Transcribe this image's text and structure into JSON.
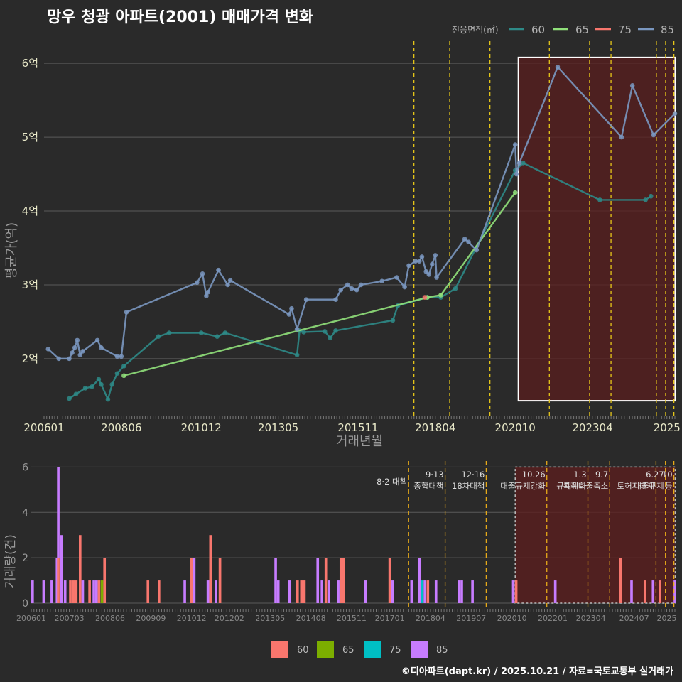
{
  "title": "망우 청광 아파트(2001) 매매가격 변화",
  "credit": "©디아파트(dapt.kr) / 2025.10.21 / 자료=국토교통부 실거래가",
  "colors": {
    "bg": "#2a2a2a",
    "grid": "#5a5a5a",
    "tick": "#e8e8c8",
    "axis_title": "#9a9a9a",
    "highlight_fill": "#5a1e1e",
    "vline": "#e6c619"
  },
  "chart_data": [
    {
      "type": "line",
      "title": "망우 청광 아파트(2001) 매매가격 변화",
      "xlabel": "거래년월",
      "ylabel": "평균가(억)",
      "ylim": [
        1.2,
        6.3
      ],
      "xlim": [
        2006.0,
        2025.75
      ],
      "x_ticks": [
        {
          "v": 2006.0,
          "label": "200601"
        },
        {
          "v": 2008.42,
          "label": "200806"
        },
        {
          "v": 2010.92,
          "label": "201012"
        },
        {
          "v": 2013.33,
          "label": "201305"
        },
        {
          "v": 2015.83,
          "label": "201511"
        },
        {
          "v": 2018.25,
          "label": "201804"
        },
        {
          "v": 2020.75,
          "label": "202010"
        },
        {
          "v": 2023.17,
          "label": "202304"
        },
        {
          "v": 2025.5,
          "label": "2025"
        }
      ],
      "y_ticks": [
        {
          "v": 2,
          "label": "2억"
        },
        {
          "v": 3,
          "label": "3억"
        },
        {
          "v": 4,
          "label": "4억"
        },
        {
          "v": 5,
          "label": "5억"
        },
        {
          "v": 6,
          "label": "6억"
        }
      ],
      "legend_title": "전용면적(㎡)",
      "legend_position": "top-right",
      "policy_lines": [
        2017.58,
        2018.7,
        2019.96,
        2021.82,
        2023.08,
        2023.75,
        2025.17,
        2025.46,
        2025.72
      ],
      "highlight": {
        "x_start": 2020.85,
        "x_end": 2025.76,
        "y_start": 1.43,
        "y_end": 6.08
      },
      "series": [
        {
          "name": "60",
          "color": "#2e8a87",
          "x": [
            2006.79,
            2007.0,
            2007.29,
            2007.5,
            2007.71,
            2007.79,
            2008.0,
            2008.13,
            2008.29,
            2008.5,
            2009.58,
            2009.92,
            2010.92,
            2011.42,
            2011.67,
            2013.92,
            2014.0,
            2014.13,
            2014.79,
            2014.96,
            2015.13,
            2016.92,
            2017.08,
            2018.0,
            2018.42,
            2018.88,
            2020.75,
            2021.0,
            2023.4,
            2024.83,
            2025.0
          ],
          "y": [
            1.46,
            1.52,
            1.6,
            1.62,
            1.72,
            1.65,
            1.45,
            1.65,
            1.8,
            1.9,
            2.3,
            2.35,
            2.35,
            2.3,
            2.35,
            2.05,
            2.38,
            2.36,
            2.37,
            2.28,
            2.38,
            2.52,
            2.72,
            2.83,
            2.83,
            2.95,
            4.55,
            4.65,
            4.15,
            4.15,
            4.2
          ]
        },
        {
          "name": "65",
          "color": "#90e07a",
          "x": [
            2008.5,
            2018.0,
            2018.42,
            2020.75
          ],
          "y": [
            1.77,
            2.83,
            2.86,
            4.25
          ]
        },
        {
          "name": "75",
          "color": "#f8766d",
          "x": [
            2017.92
          ],
          "y": [
            2.83
          ]
        },
        {
          "name": "85",
          "color": "#7a97c0",
          "x": [
            2006.13,
            2006.46,
            2006.79,
            2006.88,
            2006.96,
            2007.04,
            2007.13,
            2007.21,
            2007.67,
            2007.79,
            2008.29,
            2008.42,
            2008.58,
            2010.79,
            2010.96,
            2011.08,
            2011.13,
            2011.46,
            2011.75,
            2011.83,
            2013.67,
            2013.75,
            2013.92,
            2014.21,
            2015.13,
            2015.29,
            2015.5,
            2015.63,
            2015.79,
            2015.92,
            2016.58,
            2017.04,
            2017.29,
            2017.42,
            2017.63,
            2017.75,
            2017.83,
            2017.96,
            2018.05,
            2018.15,
            2018.25,
            2018.29,
            2019.17,
            2019.29,
            2019.54,
            2020.75,
            2020.79,
            2020.88,
            2022.08,
            2024.08,
            2024.42,
            2025.08,
            2025.75
          ],
          "y": [
            2.13,
            2.0,
            2.0,
            2.08,
            2.15,
            2.25,
            2.05,
            2.1,
            2.25,
            2.15,
            2.03,
            2.03,
            2.63,
            3.03,
            3.15,
            2.85,
            2.9,
            3.2,
            3.0,
            3.06,
            2.6,
            2.68,
            2.4,
            2.8,
            2.8,
            2.93,
            3.0,
            2.95,
            2.93,
            3.0,
            3.05,
            3.1,
            2.97,
            3.26,
            3.32,
            3.32,
            3.38,
            3.18,
            3.14,
            3.28,
            3.4,
            3.1,
            3.62,
            3.58,
            3.47,
            4.9,
            4.5,
            4.65,
            5.95,
            5.0,
            5.7,
            5.03,
            5.32
          ]
        }
      ]
    },
    {
      "type": "bar",
      "xlabel": "",
      "ylabel": "거래량(건)",
      "ylim": [
        0,
        6.2
      ],
      "xlim": [
        2006.0,
        2025.75
      ],
      "y_ticks": [
        {
          "v": 0,
          "label": "0"
        },
        {
          "v": 2,
          "label": "2"
        },
        {
          "v": 4,
          "label": "4"
        },
        {
          "v": 6,
          "label": "6"
        }
      ],
      "x_ticks": [
        {
          "v": 2006.0,
          "label": "200601"
        },
        {
          "v": 2007.17,
          "label": "200703"
        },
        {
          "v": 2008.42,
          "label": "200806"
        },
        {
          "v": 2009.67,
          "label": "200909"
        },
        {
          "v": 2010.92,
          "label": "201012"
        },
        {
          "v": 2012.08,
          "label": "201202"
        },
        {
          "v": 2013.33,
          "label": "201305"
        },
        {
          "v": 2014.58,
          "label": "201408"
        },
        {
          "v": 2015.83,
          "label": "201511"
        },
        {
          "v": 2017.0,
          "label": "201701"
        },
        {
          "v": 2018.25,
          "label": "201804"
        },
        {
          "v": 2019.5,
          "label": "201907"
        },
        {
          "v": 2020.75,
          "label": "202010"
        },
        {
          "v": 2022.0,
          "label": "202201"
        },
        {
          "v": 2023.17,
          "label": "202304"
        },
        {
          "v": 2024.5,
          "label": "202407"
        },
        {
          "v": 2025.5,
          "label": "2025"
        }
      ],
      "legend_position": "bottom",
      "legend": [
        {
          "name": "60",
          "color": "#f8766d"
        },
        {
          "name": "65",
          "color": "#7cae00"
        },
        {
          "name": "75",
          "color": "#00bfc4"
        },
        {
          "name": "85",
          "color": "#c77cff"
        }
      ],
      "policy_lines": [
        2017.58,
        2018.7,
        2019.96,
        2021.82,
        2023.08,
        2023.75,
        2025.17,
        2025.46,
        2025.72
      ],
      "policy_annotations": [
        {
          "x": 2017.58,
          "lines": [
            "8·2 대책"
          ]
        },
        {
          "x": 2018.7,
          "lines": [
            "9·13",
            "종합대책"
          ]
        },
        {
          "x": 2019.96,
          "lines": [
            "12·16",
            "18차대책"
          ]
        },
        {
          "x": 2021.82,
          "lines": [
            "10.26",
            "대출규제강화"
          ]
        },
        {
          "x": 2023.08,
          "lines": [
            "1.3",
            "규제완화"
          ]
        },
        {
          "x": 2023.75,
          "lines": [
            "9.7",
            "특례대출축소"
          ]
        },
        {
          "x": 2025.17,
          "lines": [
            "",
            "토허제해제"
          ]
        },
        {
          "x": 2025.46,
          "lines": [
            "6.27",
            "대출규제"
          ]
        },
        {
          "x": 2025.72,
          "lines": [
            "10",
            "등"
          ]
        }
      ],
      "highlight": {
        "x_start": 2020.85,
        "x_end": 2025.76,
        "y_start": 0,
        "y_end": 6
      },
      "bars": [
        {
          "x": 2006.04,
          "60": 0,
          "85": 1
        },
        {
          "x": 2006.38,
          "85": 1
        },
        {
          "x": 2006.63,
          "85": 1
        },
        {
          "x": 2006.79,
          "85": 2
        },
        {
          "x": 2006.83,
          "60": 2,
          "85": 4
        },
        {
          "x": 2006.92,
          "85": 3
        },
        {
          "x": 2007.04,
          "85": 1
        },
        {
          "x": 2007.2,
          "60": 1
        },
        {
          "x": 2007.29,
          "60": 1
        },
        {
          "x": 2007.38,
          "60": 1
        },
        {
          "x": 2007.5,
          "60": 3
        },
        {
          "x": 2007.58,
          "85": 1
        },
        {
          "x": 2007.79,
          "60": 1
        },
        {
          "x": 2007.92,
          "85": 1
        },
        {
          "x": 2008.0,
          "85": 1
        },
        {
          "x": 2008.08,
          "60": 1
        },
        {
          "x": 2008.17,
          "65": 1
        },
        {
          "x": 2008.25,
          "60": 2
        },
        {
          "x": 2009.58,
          "60": 1
        },
        {
          "x": 2009.92,
          "60": 1
        },
        {
          "x": 2010.71,
          "85": 1
        },
        {
          "x": 2010.92,
          "60": 2
        },
        {
          "x": 2011.0,
          "85": 2
        },
        {
          "x": 2011.42,
          "85": 1
        },
        {
          "x": 2011.5,
          "60": 3
        },
        {
          "x": 2011.67,
          "85": 1
        },
        {
          "x": 2011.79,
          "60": 2
        },
        {
          "x": 2013.5,
          "85": 2
        },
        {
          "x": 2013.58,
          "85": 1
        },
        {
          "x": 2013.92,
          "85": 1
        },
        {
          "x": 2014.17,
          "60": 1
        },
        {
          "x": 2014.29,
          "60": 1
        },
        {
          "x": 2014.38,
          "60": 1
        },
        {
          "x": 2014.79,
          "85": 2
        },
        {
          "x": 2014.92,
          "85": 1
        },
        {
          "x": 2015.04,
          "60": 2
        },
        {
          "x": 2015.13,
          "85": 1
        },
        {
          "x": 2015.42,
          "85": 1
        },
        {
          "x": 2015.5,
          "60": 2
        },
        {
          "x": 2015.58,
          "60": 2
        },
        {
          "x": 2016.25,
          "85": 1
        },
        {
          "x": 2017.0,
          "60": 2
        },
        {
          "x": 2017.08,
          "85": 1
        },
        {
          "x": 2017.67,
          "85": 1
        },
        {
          "x": 2017.92,
          "85": 2
        },
        {
          "x": 2018.0,
          "75": 1
        },
        {
          "x": 2018.08,
          "85": 1
        },
        {
          "x": 2018.17,
          "60": 1
        },
        {
          "x": 2018.42,
          "85": 1
        },
        {
          "x": 2019.13,
          "85": 1
        },
        {
          "x": 2019.21,
          "85": 1
        },
        {
          "x": 2019.54,
          "85": 1
        },
        {
          "x": 2020.79,
          "85": 1
        },
        {
          "x": 2020.88,
          "60": 1
        },
        {
          "x": 2022.08,
          "85": 1
        },
        {
          "x": 2024.08,
          "60": 2
        },
        {
          "x": 2024.42,
          "85": 1
        },
        {
          "x": 2024.83,
          "60": 1
        },
        {
          "x": 2025.08,
          "85": 1
        },
        {
          "x": 2025.29,
          "60": 1
        },
        {
          "x": 2025.75,
          "85": 1
        }
      ]
    }
  ]
}
